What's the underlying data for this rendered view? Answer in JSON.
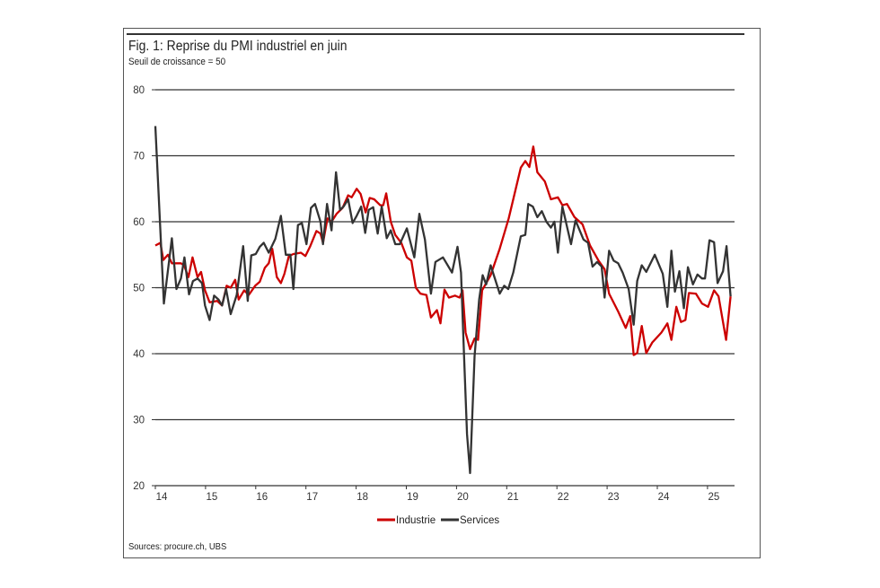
{
  "chart_data": {
    "type": "line",
    "title": "Fig. 1: Reprise du PMI industriel en juin",
    "subtitle": "Seuil de croissance = 50",
    "source": "Sources: procure.ch, UBS",
    "xlabel": "",
    "ylabel": "",
    "xlim": [
      14,
      25.5
    ],
    "ylim": [
      20,
      80
    ],
    "xticks": [
      "14",
      "15",
      "16",
      "17",
      "18",
      "19",
      "20",
      "21",
      "22",
      "23",
      "24",
      "25"
    ],
    "yticks": [
      "80",
      "70",
      "60",
      "50",
      "40",
      "30",
      "20"
    ],
    "grid": "horizontal",
    "legend": "bottom-center",
    "series": [
      {
        "name": "Industrie",
        "color": "#cc0000",
        "points": [
          [
            14.0,
            56.4
          ],
          [
            14.1,
            56.8
          ],
          [
            14.16,
            54.2
          ],
          [
            14.25,
            55.0
          ],
          [
            14.33,
            53.7
          ],
          [
            14.51,
            53.7
          ],
          [
            14.57,
            53.4
          ],
          [
            14.66,
            51.6
          ],
          [
            14.74,
            54.6
          ],
          [
            14.84,
            51.6
          ],
          [
            14.91,
            52.4
          ],
          [
            14.99,
            49.6
          ],
          [
            15.08,
            47.8
          ],
          [
            15.23,
            48.0
          ],
          [
            15.33,
            47.3
          ],
          [
            15.42,
            50.3
          ],
          [
            15.5,
            50.0
          ],
          [
            15.59,
            51.2
          ],
          [
            15.66,
            48.2
          ],
          [
            15.77,
            49.6
          ],
          [
            15.86,
            48.9
          ],
          [
            15.99,
            50.3
          ],
          [
            16.08,
            50.9
          ],
          [
            16.18,
            53.0
          ],
          [
            16.26,
            53.7
          ],
          [
            16.33,
            55.9
          ],
          [
            16.42,
            51.6
          ],
          [
            16.5,
            50.7
          ],
          [
            16.57,
            52.1
          ],
          [
            16.66,
            54.8
          ],
          [
            16.75,
            55.1
          ],
          [
            16.9,
            55.3
          ],
          [
            16.99,
            54.8
          ],
          [
            17.08,
            56.2
          ],
          [
            17.21,
            58.6
          ],
          [
            17.29,
            58.2
          ],
          [
            17.34,
            56.8
          ],
          [
            17.43,
            60.5
          ],
          [
            17.51,
            60.0
          ],
          [
            17.61,
            61.2
          ],
          [
            17.73,
            62.1
          ],
          [
            17.84,
            64.0
          ],
          [
            17.91,
            63.7
          ],
          [
            18.01,
            65.0
          ],
          [
            18.09,
            64.2
          ],
          [
            18.19,
            61.4
          ],
          [
            18.27,
            63.6
          ],
          [
            18.36,
            63.4
          ],
          [
            18.48,
            62.5
          ],
          [
            18.54,
            62.5
          ],
          [
            18.6,
            64.3
          ],
          [
            18.69,
            60.0
          ],
          [
            18.78,
            58.0
          ],
          [
            18.9,
            56.8
          ],
          [
            19.01,
            54.6
          ],
          [
            19.1,
            54.1
          ],
          [
            19.19,
            50.0
          ],
          [
            19.28,
            49.1
          ],
          [
            19.4,
            48.9
          ],
          [
            19.49,
            45.5
          ],
          [
            19.61,
            46.6
          ],
          [
            19.68,
            44.6
          ],
          [
            19.76,
            49.7
          ],
          [
            19.85,
            48.5
          ],
          [
            19.97,
            48.8
          ],
          [
            20.06,
            48.5
          ],
          [
            20.12,
            49.6
          ],
          [
            20.18,
            43.2
          ],
          [
            20.27,
            40.7
          ],
          [
            20.36,
            42.3
          ],
          [
            20.43,
            42.1
          ],
          [
            20.51,
            49.6
          ],
          [
            20.68,
            51.9
          ],
          [
            20.86,
            55.9
          ],
          [
            21.04,
            60.5
          ],
          [
            21.28,
            68.2
          ],
          [
            21.37,
            69.2
          ],
          [
            21.45,
            68.3
          ],
          [
            21.53,
            71.4
          ],
          [
            21.61,
            67.5
          ],
          [
            21.76,
            66.1
          ],
          [
            21.88,
            63.4
          ],
          [
            22.02,
            63.7
          ],
          [
            22.11,
            62.5
          ],
          [
            22.2,
            62.7
          ],
          [
            22.35,
            60.7
          ],
          [
            22.51,
            59.6
          ],
          [
            22.66,
            56.4
          ],
          [
            22.83,
            54.1
          ],
          [
            22.95,
            52.8
          ],
          [
            23.04,
            49.1
          ],
          [
            23.22,
            46.4
          ],
          [
            23.37,
            43.9
          ],
          [
            23.46,
            45.7
          ],
          [
            23.53,
            39.8
          ],
          [
            23.6,
            40.1
          ],
          [
            23.69,
            44.2
          ],
          [
            23.78,
            40.1
          ],
          [
            23.9,
            41.7
          ],
          [
            24.08,
            43.2
          ],
          [
            24.2,
            44.6
          ],
          [
            24.28,
            42.1
          ],
          [
            24.38,
            47.1
          ],
          [
            24.47,
            44.8
          ],
          [
            24.56,
            45.1
          ],
          [
            24.63,
            49.2
          ],
          [
            24.77,
            49.1
          ],
          [
            24.89,
            47.6
          ],
          [
            25.01,
            47.1
          ],
          [
            25.13,
            49.6
          ],
          [
            25.22,
            48.7
          ],
          [
            25.37,
            42.1
          ],
          [
            25.46,
            48.7
          ]
        ]
      },
      {
        "name": "Services",
        "color": "#333333",
        "points": [
          [
            14.0,
            74.5
          ],
          [
            14.17,
            47.6
          ],
          [
            14.33,
            57.5
          ],
          [
            14.42,
            49.8
          ],
          [
            14.51,
            51.4
          ],
          [
            14.58,
            54.6
          ],
          [
            14.67,
            49.0
          ],
          [
            14.75,
            51.0
          ],
          [
            14.84,
            51.4
          ],
          [
            14.93,
            50.7
          ],
          [
            14.99,
            47.3
          ],
          [
            15.08,
            45.1
          ],
          [
            15.17,
            48.8
          ],
          [
            15.26,
            48.2
          ],
          [
            15.33,
            47.3
          ],
          [
            15.41,
            49.8
          ],
          [
            15.5,
            46.0
          ],
          [
            15.62,
            48.9
          ],
          [
            15.75,
            56.3
          ],
          [
            15.84,
            48.0
          ],
          [
            15.91,
            54.9
          ],
          [
            16.0,
            55.1
          ],
          [
            16.08,
            56.2
          ],
          [
            16.16,
            56.8
          ],
          [
            16.26,
            55.3
          ],
          [
            16.39,
            57.4
          ],
          [
            16.5,
            60.9
          ],
          [
            16.6,
            55.0
          ],
          [
            16.69,
            55.0
          ],
          [
            16.75,
            49.8
          ],
          [
            16.84,
            59.5
          ],
          [
            16.92,
            59.8
          ],
          [
            17.01,
            56.6
          ],
          [
            17.1,
            62.1
          ],
          [
            17.18,
            62.7
          ],
          [
            17.29,
            60.0
          ],
          [
            17.34,
            56.6
          ],
          [
            17.42,
            62.7
          ],
          [
            17.51,
            58.7
          ],
          [
            17.6,
            67.5
          ],
          [
            17.68,
            61.8
          ],
          [
            17.75,
            62.3
          ],
          [
            17.84,
            63.4
          ],
          [
            17.93,
            59.8
          ],
          [
            18.01,
            60.9
          ],
          [
            18.1,
            62.3
          ],
          [
            18.18,
            58.3
          ],
          [
            18.25,
            61.8
          ],
          [
            18.34,
            62.2
          ],
          [
            18.43,
            58.2
          ],
          [
            18.51,
            62.3
          ],
          [
            18.61,
            57.5
          ],
          [
            18.69,
            58.7
          ],
          [
            18.78,
            56.6
          ],
          [
            18.87,
            56.6
          ],
          [
            19.01,
            59.0
          ],
          [
            19.16,
            54.6
          ],
          [
            19.26,
            61.2
          ],
          [
            19.37,
            57.3
          ],
          [
            19.49,
            49.1
          ],
          [
            19.58,
            53.9
          ],
          [
            19.73,
            54.6
          ],
          [
            19.91,
            52.3
          ],
          [
            20.02,
            56.2
          ],
          [
            20.09,
            52.3
          ],
          [
            20.15,
            39.6
          ],
          [
            20.21,
            27.8
          ],
          [
            20.27,
            21.9
          ],
          [
            20.36,
            39.6
          ],
          [
            20.45,
            48.2
          ],
          [
            20.52,
            51.9
          ],
          [
            20.59,
            50.5
          ],
          [
            20.68,
            53.4
          ],
          [
            20.86,
            49.1
          ],
          [
            20.95,
            50.3
          ],
          [
            21.03,
            49.8
          ],
          [
            21.13,
            52.3
          ],
          [
            21.28,
            57.8
          ],
          [
            21.37,
            58.0
          ],
          [
            21.43,
            62.7
          ],
          [
            21.52,
            62.3
          ],
          [
            21.61,
            60.7
          ],
          [
            21.7,
            61.6
          ],
          [
            21.79,
            60.0
          ],
          [
            21.88,
            59.1
          ],
          [
            21.95,
            60.0
          ],
          [
            22.02,
            55.3
          ],
          [
            22.11,
            62.3
          ],
          [
            22.28,
            56.6
          ],
          [
            22.37,
            60.2
          ],
          [
            22.53,
            57.3
          ],
          [
            22.62,
            56.8
          ],
          [
            22.71,
            53.2
          ],
          [
            22.8,
            53.9
          ],
          [
            22.89,
            53.2
          ],
          [
            22.95,
            48.5
          ],
          [
            23.04,
            55.6
          ],
          [
            23.13,
            54.1
          ],
          [
            23.22,
            53.7
          ],
          [
            23.31,
            52.3
          ],
          [
            23.43,
            49.8
          ],
          [
            23.53,
            44.4
          ],
          [
            23.6,
            51.0
          ],
          [
            23.69,
            53.4
          ],
          [
            23.78,
            52.4
          ],
          [
            23.95,
            55.0
          ],
          [
            24.11,
            52.1
          ],
          [
            24.2,
            47.1
          ],
          [
            24.28,
            55.6
          ],
          [
            24.35,
            49.4
          ],
          [
            24.44,
            52.5
          ],
          [
            24.53,
            46.9
          ],
          [
            24.61,
            53.1
          ],
          [
            24.71,
            50.5
          ],
          [
            24.8,
            52.0
          ],
          [
            24.89,
            51.4
          ],
          [
            24.95,
            51.4
          ],
          [
            25.04,
            57.2
          ],
          [
            25.13,
            56.9
          ],
          [
            25.2,
            50.7
          ],
          [
            25.31,
            52.5
          ],
          [
            25.38,
            56.3
          ],
          [
            25.46,
            48.7
          ]
        ]
      }
    ]
  }
}
